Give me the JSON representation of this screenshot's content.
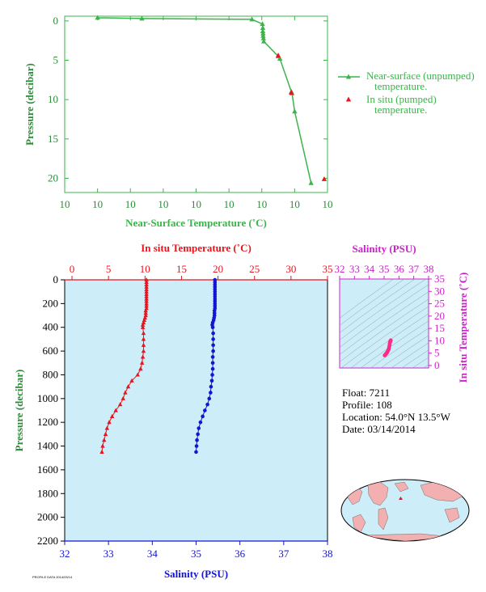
{
  "float_info": {
    "float": "Float:  7211",
    "profile": "Profile:  108",
    "location": "Location:  54.0°N  13.5°W",
    "date": "Date:  03/14/2014"
  },
  "footer": "PROFILE DATA  2014/03/14",
  "colors": {
    "green": "#3cb44b",
    "red": "#e8141e",
    "blue": "#1414d2",
    "magenta": "#cc22cc",
    "panel_bg": "#cdeef8"
  },
  "chart_data": [
    {
      "type": "line",
      "xlabel": "Near-Surface Temperature (˚C)",
      "ylabel": "Pressure (decibar)",
      "x_tick_labels": [
        "10",
        "10",
        "10",
        "10",
        "10",
        "10",
        "10",
        "10",
        "10"
      ],
      "y_ticks": [
        0,
        5,
        10,
        15,
        20
      ],
      "ylim": [
        21.8,
        -0.6
      ],
      "xlim": [
        0,
        8
      ],
      "legend_position": "right",
      "series": [
        {
          "name": "Near-surface (unpumped) temperature.",
          "marker": "triangle",
          "x": [
            1.0,
            2.35,
            5.7,
            6.02,
            6.03,
            6.03,
            6.04,
            6.04,
            6.05,
            6.06,
            6.5,
            6.55,
            6.9,
            6.92,
            7.0,
            7.5
          ],
          "y": [
            -0.4,
            -0.3,
            -0.2,
            0.4,
            0.9,
            1.3,
            1.6,
            1.9,
            2.2,
            2.6,
            4.5,
            4.8,
            9.0,
            9.2,
            11.5,
            20.6
          ]
        },
        {
          "name": "In situ (pumped) temperature.",
          "marker": "triangle",
          "x": [
            6.5,
            6.9,
            7.9
          ],
          "y": [
            4.4,
            9.1,
            20.1
          ]
        }
      ]
    },
    {
      "type": "line",
      "top_xlabel": "In situ Temperature (˚C)",
      "bottom_xlabel": "Salinity (PSU)",
      "ylabel": "Pressure (decibar)",
      "temp_ticks": [
        0,
        5,
        10,
        15,
        20,
        25,
        30,
        35
      ],
      "sal_ticks": [
        32,
        33,
        34,
        35,
        36,
        37,
        38
      ],
      "y_ticks": [
        0,
        200,
        400,
        600,
        800,
        1000,
        1200,
        1400,
        1600,
        1800,
        2000,
        2200
      ],
      "temp_lim": [
        -1,
        35
      ],
      "sal_lim": [
        32,
        38
      ],
      "ylim": [
        2200,
        0
      ],
      "series": [
        {
          "name": "In situ Temperature",
          "color": "red",
          "marker": "triangle",
          "values": [
            [
              10.2,
              0
            ],
            [
              10.2,
              20
            ],
            [
              10.2,
              40
            ],
            [
              10.2,
              60
            ],
            [
              10.2,
              80
            ],
            [
              10.2,
              100
            ],
            [
              10.2,
              120
            ],
            [
              10.2,
              140
            ],
            [
              10.2,
              160
            ],
            [
              10.2,
              180
            ],
            [
              10.2,
              200
            ],
            [
              10.2,
              220
            ],
            [
              10.2,
              240
            ],
            [
              10.1,
              260
            ],
            [
              10.1,
              280
            ],
            [
              10.1,
              300
            ],
            [
              10.0,
              320
            ],
            [
              9.9,
              340
            ],
            [
              9.8,
              360
            ],
            [
              9.7,
              380
            ],
            [
              9.7,
              400
            ],
            [
              9.8,
              450
            ],
            [
              9.8,
              500
            ],
            [
              9.8,
              550
            ],
            [
              9.8,
              600
            ],
            [
              9.7,
              650
            ],
            [
              9.6,
              700
            ],
            [
              9.4,
              750
            ],
            [
              9.0,
              800
            ],
            [
              8.2,
              850
            ],
            [
              7.7,
              900
            ],
            [
              7.3,
              950
            ],
            [
              7.0,
              1000
            ],
            [
              6.6,
              1050
            ],
            [
              6.0,
              1100
            ],
            [
              5.5,
              1150
            ],
            [
              5.1,
              1200
            ],
            [
              4.8,
              1250
            ],
            [
              4.6,
              1300
            ],
            [
              4.4,
              1350
            ],
            [
              4.2,
              1400
            ],
            [
              4.1,
              1450
            ]
          ]
        },
        {
          "name": "Salinity",
          "color": "blue",
          "marker": "circle",
          "values": [
            [
              35.43,
              0
            ],
            [
              35.43,
              20
            ],
            [
              35.43,
              40
            ],
            [
              35.43,
              60
            ],
            [
              35.43,
              80
            ],
            [
              35.43,
              100
            ],
            [
              35.43,
              120
            ],
            [
              35.43,
              140
            ],
            [
              35.43,
              160
            ],
            [
              35.43,
              180
            ],
            [
              35.43,
              200
            ],
            [
              35.43,
              220
            ],
            [
              35.43,
              240
            ],
            [
              35.42,
              260
            ],
            [
              35.42,
              280
            ],
            [
              35.42,
              300
            ],
            [
              35.41,
              320
            ],
            [
              35.4,
              340
            ],
            [
              35.38,
              360
            ],
            [
              35.37,
              380
            ],
            [
              35.38,
              400
            ],
            [
              35.39,
              450
            ],
            [
              35.39,
              500
            ],
            [
              35.39,
              550
            ],
            [
              35.39,
              600
            ],
            [
              35.38,
              650
            ],
            [
              35.38,
              700
            ],
            [
              35.38,
              750
            ],
            [
              35.37,
              800
            ],
            [
              35.36,
              850
            ],
            [
              35.34,
              900
            ],
            [
              35.33,
              950
            ],
            [
              35.3,
              1000
            ],
            [
              35.26,
              1050
            ],
            [
              35.2,
              1100
            ],
            [
              35.15,
              1150
            ],
            [
              35.1,
              1200
            ],
            [
              35.06,
              1250
            ],
            [
              35.04,
              1300
            ],
            [
              35.02,
              1350
            ],
            [
              35.01,
              1400
            ],
            [
              35.0,
              1450
            ]
          ]
        }
      ]
    },
    {
      "type": "scatter",
      "xlabel": "Salinity (PSU)",
      "ylabel": "In situ Temperature (˚C)",
      "sal_ticks": [
        32,
        33,
        34,
        35,
        36,
        37,
        38
      ],
      "temp_ticks": [
        0,
        5,
        10,
        15,
        20,
        25,
        30,
        35
      ],
      "xlim": [
        32,
        38
      ],
      "ylim": [
        -1,
        35
      ],
      "values": [
        [
          35.45,
          10.2
        ],
        [
          35.44,
          10.0
        ],
        [
          35.42,
          9.8
        ],
        [
          35.4,
          9.5
        ],
        [
          35.38,
          9.0
        ],
        [
          35.37,
          8.3
        ],
        [
          35.35,
          7.7
        ],
        [
          35.33,
          7.0
        ],
        [
          35.3,
          6.5
        ],
        [
          35.26,
          6.0
        ],
        [
          35.22,
          5.5
        ],
        [
          35.18,
          5.1
        ],
        [
          35.14,
          4.8
        ],
        [
          35.1,
          4.5
        ],
        [
          35.07,
          4.3
        ],
        [
          35.04,
          4.1
        ]
      ]
    }
  ]
}
